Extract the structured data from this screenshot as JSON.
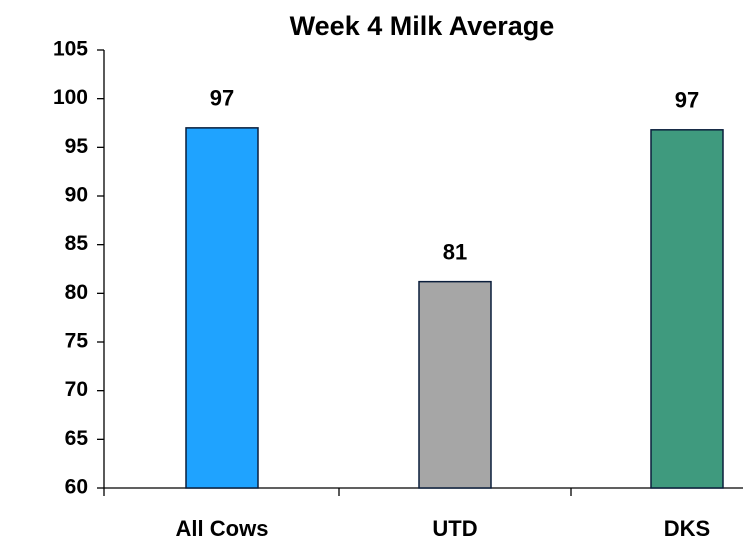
{
  "chart_data": {
    "type": "bar",
    "title": "Week 4 Milk Average",
    "categories": [
      "All Cows",
      "UTD",
      "DKS"
    ],
    "values": [
      97,
      81.2,
      96.8
    ],
    "value_labels": [
      "97",
      "81",
      "97"
    ],
    "colors": [
      "#1fa3ff",
      "#a6a6a6",
      "#3f9a7e"
    ],
    "ylim": [
      60,
      105
    ],
    "yticks": [
      60,
      65,
      70,
      75,
      80,
      85,
      90,
      95,
      100,
      105
    ]
  }
}
